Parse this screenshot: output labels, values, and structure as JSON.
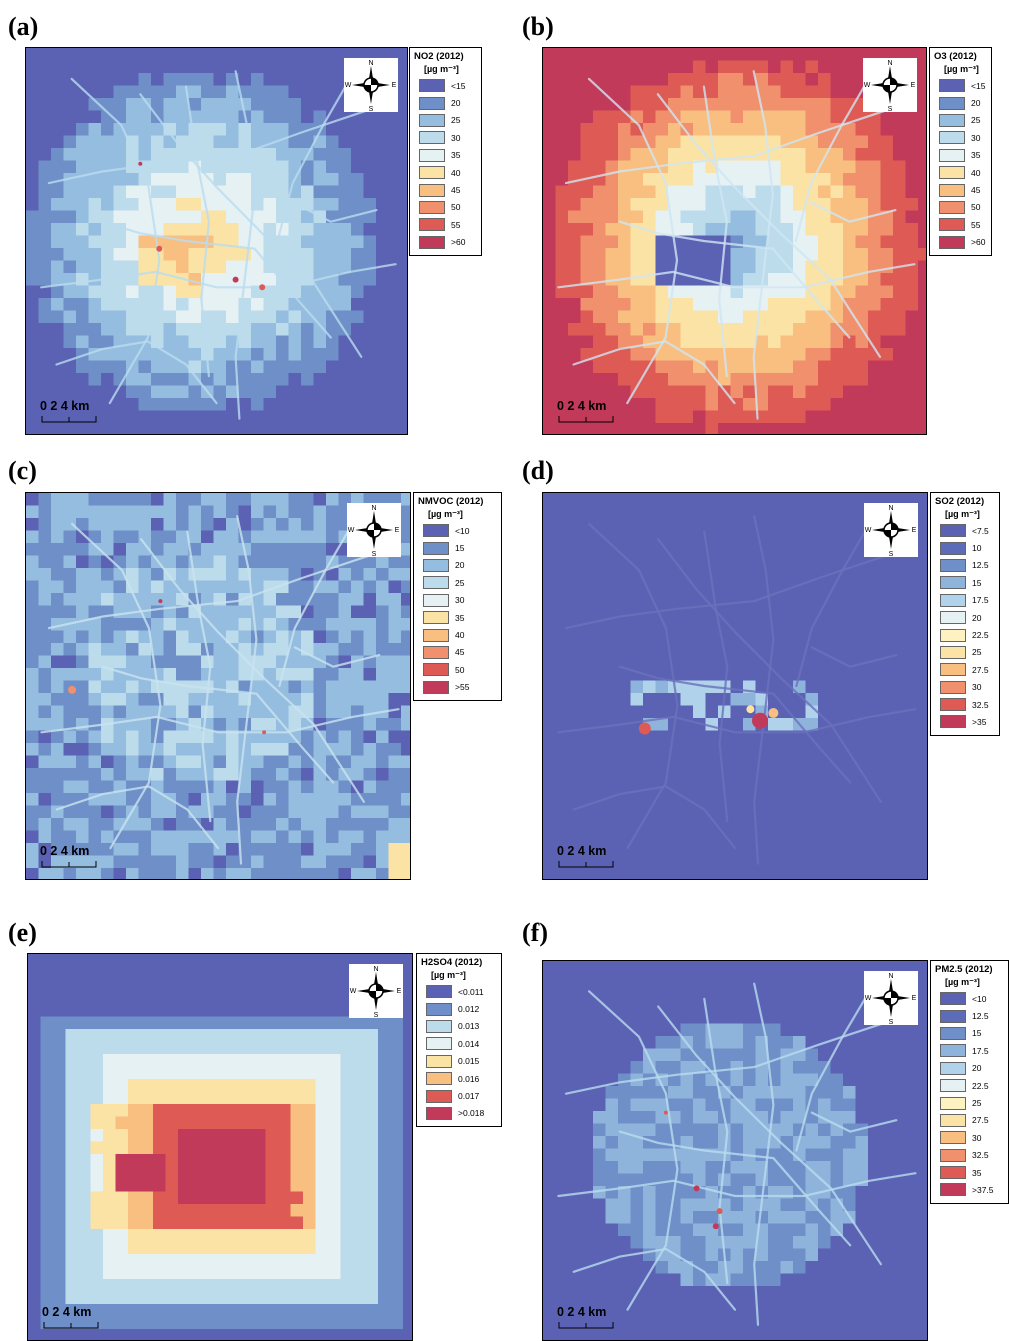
{
  "panels": [
    {
      "id": "a",
      "label": "(a)",
      "legend_title": "NO2 (2012)",
      "unit": "[µg m⁻³]",
      "classes": [
        "<15",
        "20",
        "25",
        "30",
        "35",
        "40",
        "45",
        "50",
        "55",
        ">60"
      ],
      "colors": [
        "#5b62b4",
        "#6f8fc8",
        "#95bde0",
        "#bcdcec",
        "#e6f1f4",
        "#fbe3a6",
        "#f8bf80",
        "#f1906c",
        "#dd5a55",
        "#c23a5a"
      ],
      "compass": {
        "n": "N",
        "s": "S",
        "e": "E",
        "w": "W"
      },
      "scale": {
        "labels": "0   2   4 km"
      }
    },
    {
      "id": "b",
      "label": "(b)",
      "legend_title": "O3 (2012)",
      "unit": "[µg m⁻³]",
      "classes": [
        "<15",
        "20",
        "25",
        "30",
        "35",
        "40",
        "45",
        "50",
        "55",
        ">60"
      ],
      "colors": [
        "#5b62b4",
        "#6f8fc8",
        "#95bde0",
        "#bcdcec",
        "#e6f1f4",
        "#fbe3a6",
        "#f8bf80",
        "#f1906c",
        "#dd5a55",
        "#c23a5a"
      ],
      "compass": {
        "n": "N",
        "s": "S",
        "e": "E",
        "w": "W"
      },
      "scale": {
        "labels": "0   2   4 km"
      }
    },
    {
      "id": "c",
      "label": "(c)",
      "legend_title": "NMVOC (2012)",
      "unit": "[µg m⁻³]",
      "classes": [
        "<10",
        "15",
        "20",
        "25",
        "30",
        "35",
        "40",
        "45",
        "50",
        ">55"
      ],
      "colors": [
        "#5b62b4",
        "#6f8fc8",
        "#95bde0",
        "#bcdcec",
        "#e6f1f4",
        "#fbe3a6",
        "#f8bf80",
        "#f1906c",
        "#dd5a55",
        "#c23a5a"
      ],
      "compass": {
        "n": "N",
        "s": "S",
        "e": "E",
        "w": "W"
      },
      "scale": {
        "labels": "0   2   4 km"
      }
    },
    {
      "id": "d",
      "label": "(d)",
      "legend_title": "SO2 (2012)",
      "unit": "[µg m⁻³]",
      "classes": [
        "<7.5",
        "10",
        "12.5",
        "15",
        "17.5",
        "20",
        "22.5",
        "25",
        "27.5",
        "30",
        "32.5",
        ">35"
      ],
      "colors": [
        "#5b62b4",
        "#5d6cb8",
        "#6f8fc8",
        "#8fb4dc",
        "#b0d2ea",
        "#e6f1f4",
        "#fdf2c0",
        "#fbe3a6",
        "#f8bf80",
        "#f1906c",
        "#dd5a55",
        "#c23a5a"
      ],
      "compass": {
        "n": "N",
        "s": "S",
        "e": "E",
        "w": "W"
      },
      "scale": {
        "labels": "0   2   4 km"
      }
    },
    {
      "id": "e",
      "label": "(e)",
      "legend_title": "H2SO4 (2012)",
      "unit": "[µg m⁻³]",
      "classes": [
        "<0.011",
        "0.012",
        "0.013",
        "0.014",
        "0.015",
        "0.016",
        "0.017",
        ">0.018"
      ],
      "colors": [
        "#5b62b4",
        "#6f8fc8",
        "#bcdcec",
        "#e6f1f4",
        "#fbe3a6",
        "#f8bf80",
        "#dd5a55",
        "#c23a5a"
      ],
      "compass": {
        "n": "N",
        "s": "S",
        "e": "E",
        "w": "W"
      },
      "scale": {
        "labels": "0   2   4 km"
      }
    },
    {
      "id": "f",
      "label": "(f)",
      "legend_title": "PM2.5 (2012)",
      "unit": "[µg m⁻³]",
      "classes": [
        "<10",
        "12.5",
        "15",
        "17.5",
        "20",
        "22.5",
        "25",
        "27.5",
        "30",
        "32.5",
        "35",
        ">37.5"
      ],
      "colors": [
        "#5b62b4",
        "#5d6cb8",
        "#6f8fc8",
        "#8fb4dc",
        "#b0d2ea",
        "#e6f1f4",
        "#fdf2c0",
        "#fbe3a6",
        "#f8bf80",
        "#f1906c",
        "#dd5a55",
        "#c23a5a"
      ],
      "compass": {
        "n": "N",
        "s": "S",
        "e": "E",
        "w": "W"
      },
      "scale": {
        "labels": "0   2   4 km"
      }
    }
  ]
}
